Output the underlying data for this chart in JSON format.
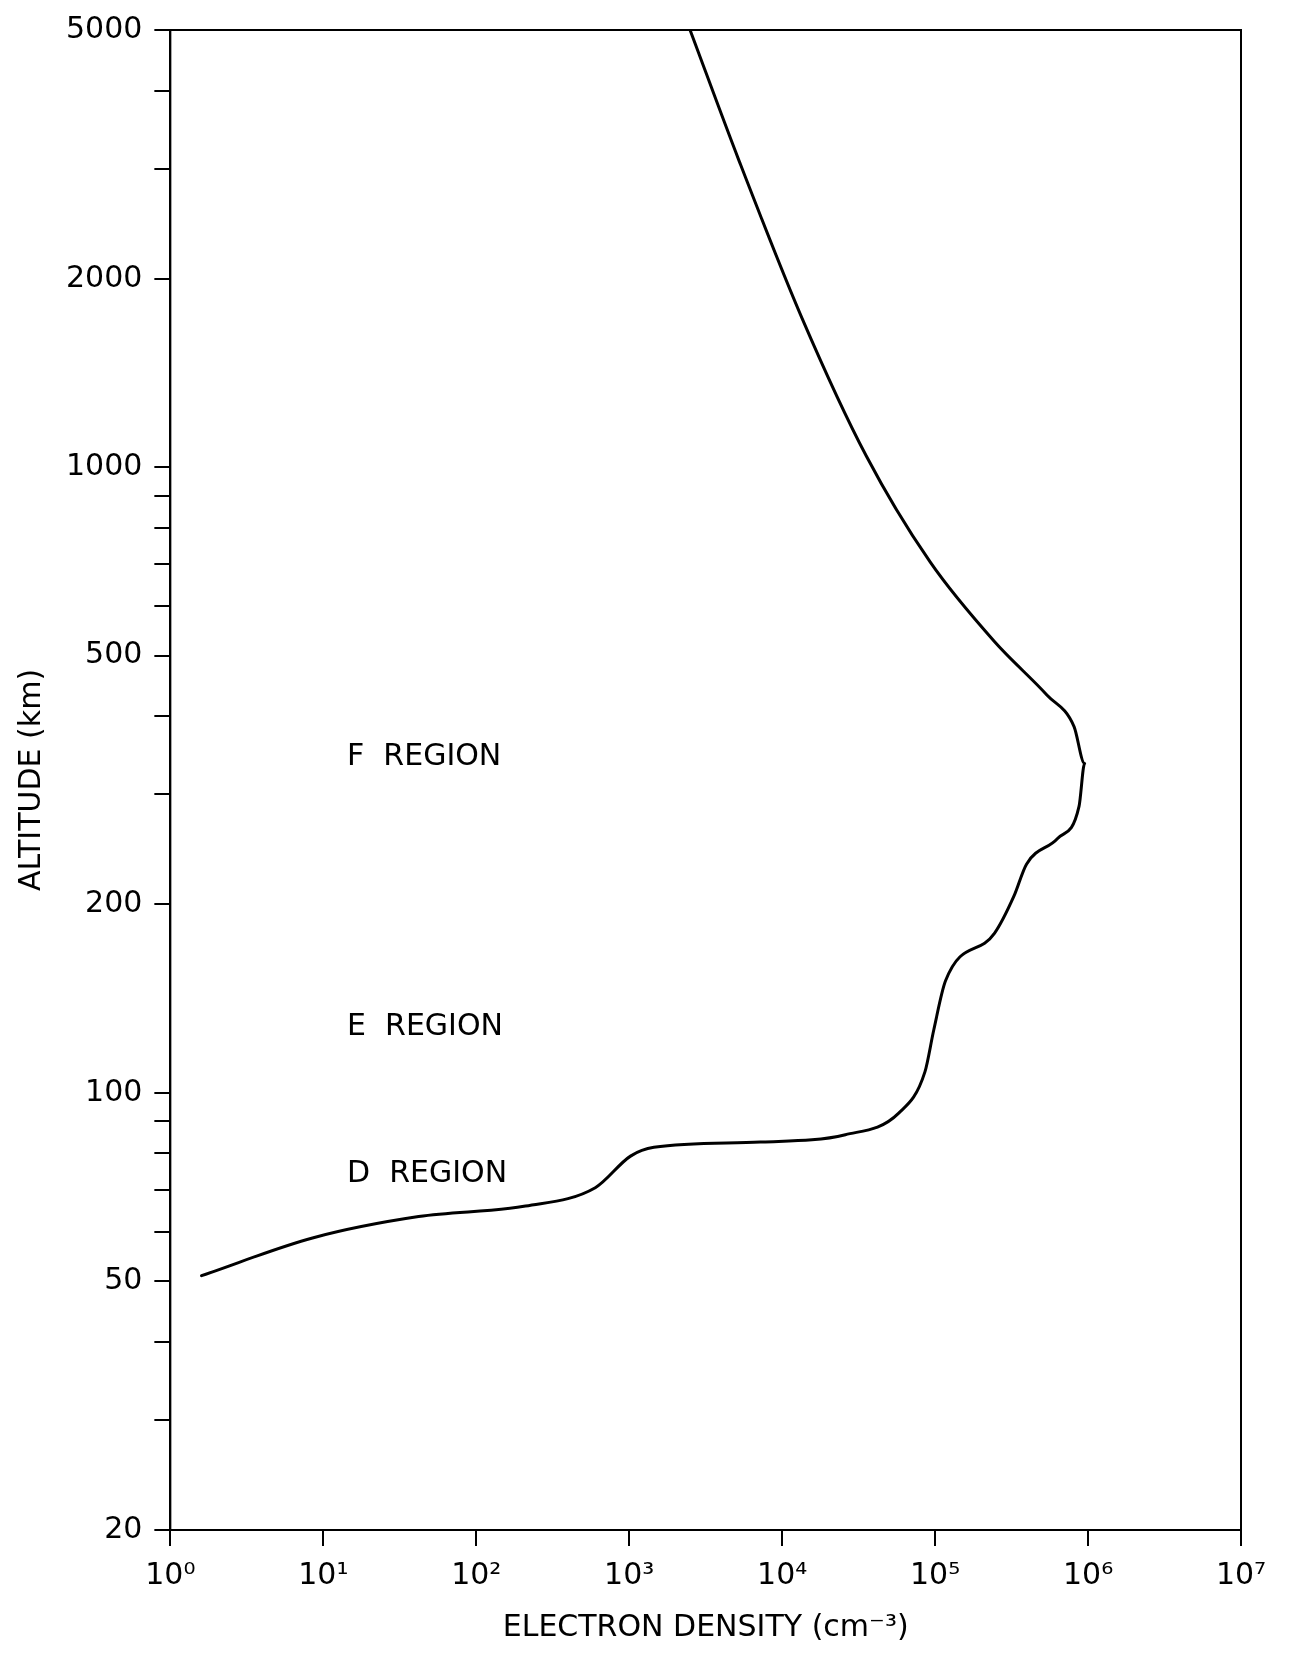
{
  "chart_data": {
    "type": "line",
    "xlabel": "ELECTRON DENSITY (cm⁻³)",
    "ylabel": "ALTITUDE (km)",
    "log": "xy",
    "grid": false,
    "legend": false,
    "marker": "none",
    "line_style": "solid",
    "xlim": [
      1,
      10000000
    ],
    "ylim": [
      20,
      5000
    ],
    "xticks": [
      {
        "value": 1,
        "label": "10⁰"
      },
      {
        "value": 10,
        "label": "10¹"
      },
      {
        "value": 100,
        "label": "10²"
      },
      {
        "value": 1000,
        "label": "10³"
      },
      {
        "value": 10000,
        "label": "10⁴"
      },
      {
        "value": 100000,
        "label": "10⁵"
      },
      {
        "value": 1000000,
        "label": "10⁶"
      },
      {
        "value": 10000000,
        "label": "10⁷"
      }
    ],
    "yticks": [
      20,
      {
        "value": 30,
        "label": null
      },
      {
        "value": 40,
        "label": null
      },
      50,
      {
        "value": 60,
        "label": null
      },
      {
        "value": 70,
        "label": null
      },
      {
        "value": 80,
        "label": null
      },
      {
        "value": 90,
        "label": null
      },
      100,
      200,
      {
        "value": 300,
        "label": null
      },
      {
        "value": 400,
        "label": null
      },
      500,
      {
        "value": 600,
        "label": null
      },
      {
        "value": 700,
        "label": null
      },
      {
        "value": 800,
        "label": null
      },
      {
        "value": 900,
        "label": null
      },
      1000,
      2000,
      {
        "value": 3000,
        "label": null
      },
      {
        "value": 4000,
        "label": null
      },
      5000
    ],
    "annotations": [
      "F  REGION",
      "E  REGION",
      "D  REGION"
    ],
    "series": [
      {
        "color": "#000000",
        "x": [
          1.6,
          8.5,
          42,
          210,
          600,
          1020,
          1450,
          7200,
          25900,
          57600,
          85800,
          98000,
          117000,
          245000,
          327000,
          396000,
          632000,
          873000,
          950000,
          810000,
          540000,
          245000,
          93000,
          35500,
          13500,
          5200,
          2500
        ],
        "values": [
          51,
          58.6,
          63.4,
          65.9,
          70.5,
          79.2,
          81.8,
          83.4,
          85.7,
          92.7,
          108,
          126,
          151,
          180,
          206,
          232,
          255,
          287,
          336,
          385,
          432,
          526,
          705,
          1042,
          1730,
          3100,
          5000
        ]
      }
    ]
  }
}
